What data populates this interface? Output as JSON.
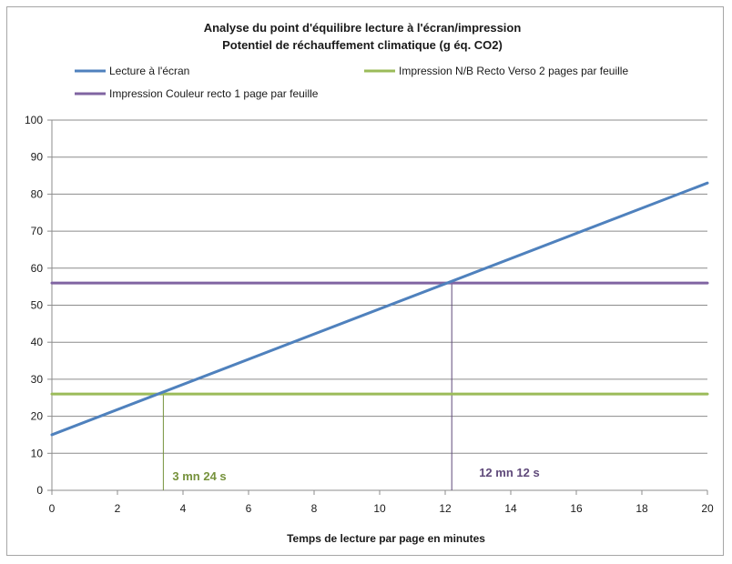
{
  "chart_data": {
    "type": "line",
    "title": "Analyse du point d'équilibre lecture à l'écran/impression",
    "subtitle": "Potentiel de réchauffement climatique (g éq. CO2)",
    "xlabel": "Temps de lecture par page en minutes",
    "ylabel": "",
    "xlim": [
      0,
      20
    ],
    "ylim": [
      0,
      100
    ],
    "x_ticks": [
      "0",
      "2",
      "4",
      "6",
      "8",
      "10",
      "12",
      "14",
      "16",
      "18",
      "20"
    ],
    "y_ticks": [
      "0",
      "10",
      "20",
      "30",
      "40",
      "50",
      "60",
      "70",
      "80",
      "90",
      "100"
    ],
    "grid": "horizontal",
    "legend_position": "top",
    "series": [
      {
        "name": "Lecture à l'écran",
        "color": "#4f81bd",
        "x": [
          0,
          20
        ],
        "y": [
          15,
          83
        ]
      },
      {
        "name": "Impression N/B Recto Verso 2 pages par feuille",
        "color": "#9bbb59",
        "x": [
          0,
          20
        ],
        "y": [
          26,
          26
        ]
      },
      {
        "name": "Impression Couleur recto 1 page par feuille",
        "color": "#8064a2",
        "x": [
          0,
          20
        ],
        "y": [
          56,
          56
        ]
      }
    ],
    "annotations": [
      {
        "text": "3 mn 24 s",
        "x": 3.4,
        "y": 26,
        "color": "#76923c"
      },
      {
        "text": "12 mn 12 s",
        "x": 12.2,
        "y": 56,
        "color": "#5f497a"
      }
    ]
  }
}
